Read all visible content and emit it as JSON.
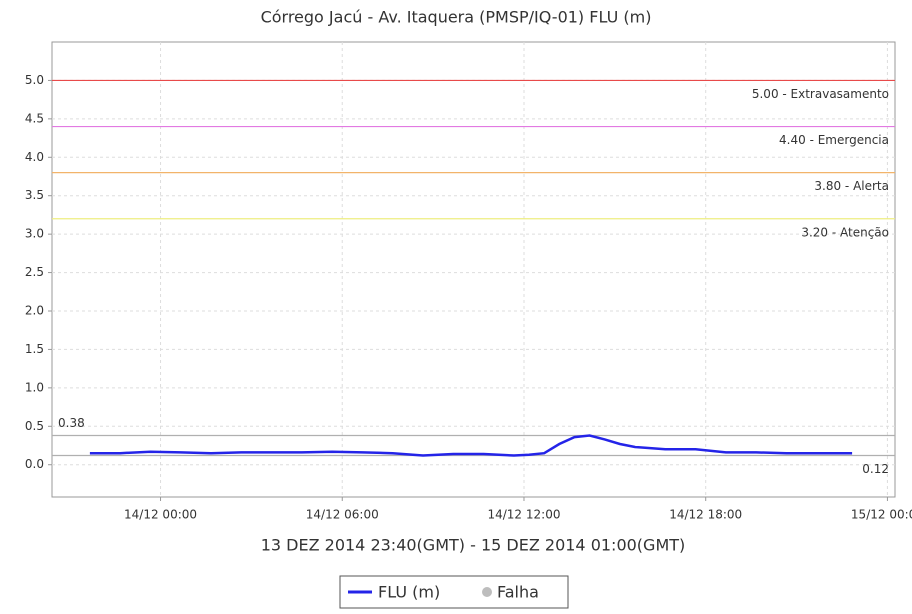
{
  "chart_data": {
    "type": "line",
    "title": "Córrego Jacú - Av. Itaquera (PMSP/IQ-01) FLU (m)",
    "subtitle": "13 DEZ 2014 23:40(GMT) - 15 DEZ 2014 01:00(GMT)",
    "x": [
      "2014-12-13T21:40",
      "2014-12-13T22:40",
      "2014-12-13T23:40",
      "2014-12-14T00:40",
      "2014-12-14T01:40",
      "2014-12-14T02:40",
      "2014-12-14T03:40",
      "2014-12-14T04:40",
      "2014-12-14T05:40",
      "2014-12-14T06:40",
      "2014-12-14T07:40",
      "2014-12-14T08:40",
      "2014-12-14T09:40",
      "2014-12-14T10:40",
      "2014-12-14T11:40",
      "2014-12-14T12:10",
      "2014-12-14T12:40",
      "2014-12-14T13:10",
      "2014-12-14T13:40",
      "2014-12-14T14:10",
      "2014-12-14T14:40",
      "2014-12-14T15:10",
      "2014-12-14T15:40",
      "2014-12-14T16:40",
      "2014-12-14T17:40",
      "2014-12-14T18:40",
      "2014-12-14T19:40",
      "2014-12-14T20:40",
      "2014-12-14T21:40",
      "2014-12-14T22:50"
    ],
    "series": [
      {
        "name": "FLU (m)",
        "color": "#2424e8",
        "values": [
          0.15,
          0.15,
          0.17,
          0.16,
          0.15,
          0.16,
          0.16,
          0.16,
          0.17,
          0.16,
          0.15,
          0.12,
          0.14,
          0.14,
          0.12,
          0.13,
          0.15,
          0.27,
          0.36,
          0.38,
          0.33,
          0.27,
          0.23,
          0.2,
          0.2,
          0.16,
          0.16,
          0.15,
          0.15,
          0.15
        ]
      }
    ],
    "failure": {
      "name": "Falha",
      "color": "#bdbdbd"
    },
    "xlim": [
      "2014-12-13T20:25",
      "2014-12-15T00:15"
    ],
    "xticks": [
      {
        "value": "2014-12-14T00:00",
        "label": "14/12 00:00"
      },
      {
        "value": "2014-12-14T06:00",
        "label": "14/12 06:00"
      },
      {
        "value": "2014-12-14T12:00",
        "label": "14/12 12:00"
      },
      {
        "value": "2014-12-14T18:00",
        "label": "14/12 18:00"
      },
      {
        "value": "2014-12-15T00:00",
        "label": "15/12 00:00"
      }
    ],
    "ylim": [
      -0.42,
      5.5
    ],
    "yticks": [
      {
        "value": 0,
        "label": "0.0"
      },
      0.5,
      {
        "value": 1,
        "label": "1.0"
      },
      1.5,
      {
        "value": 2,
        "label": "2.0"
      },
      2.5,
      {
        "value": 3,
        "label": "3.0"
      },
      3.5,
      {
        "value": 4,
        "label": "4.0"
      },
      4.5,
      {
        "value": 5,
        "label": "5.0"
      }
    ],
    "grid": true,
    "markers": [
      {
        "value": 5.0,
        "label": "5.00 - Extravasamento",
        "color": "#e84a4a"
      },
      {
        "value": 4.4,
        "label": "4.40 - Emergencia",
        "color": "#e27ae2"
      },
      {
        "value": 3.8,
        "label": "3.80 - Alerta",
        "color": "#f2b46a"
      },
      {
        "value": 3.2,
        "label": "3.20 - Atenção",
        "color": "#eeee80"
      },
      {
        "value": 0.38,
        "label": "0.38",
        "color": "#b0b0b0",
        "label_side": "left"
      },
      {
        "value": 0.12,
        "label": "0.12",
        "color": "#b0b0b0"
      }
    ]
  }
}
